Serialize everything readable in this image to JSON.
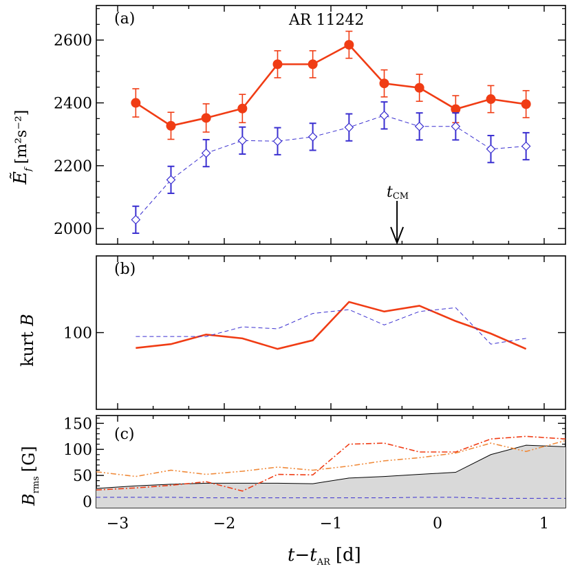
{
  "colors": {
    "red": "#f03c14",
    "blue": "#3a2fd0",
    "orange": "#f08a3a",
    "gray_fill": "#d9d9d9",
    "black": "#000000"
  },
  "chart_data": [
    {
      "panel": "a",
      "type": "line",
      "panel_label": "(a)",
      "title": "AR 11242",
      "ylabel_main": "Ẽ",
      "ylabel_sub": "f",
      "ylabel_units": "[m²s⁻²]",
      "annotation": "t",
      "annotation_sub": "CM",
      "annotation_x": -0.38,
      "ylim": [
        1950,
        2710
      ],
      "yticks": [
        2000,
        2200,
        2400,
        2600
      ],
      "x": [
        -2.83,
        -2.5,
        -2.17,
        -1.83,
        -1.5,
        -1.17,
        -0.83,
        -0.5,
        -0.17,
        0.17,
        0.5,
        0.83
      ],
      "series": [
        {
          "style": "solid-red-filled-circles",
          "values": [
            2400,
            2327,
            2352,
            2382,
            2523,
            2523,
            2585,
            2462,
            2448,
            2380,
            2412,
            2396
          ],
          "errors": [
            45,
            43,
            45,
            45,
            43,
            43,
            43,
            43,
            43,
            43,
            43,
            43
          ]
        },
        {
          "style": "dashed-blue-open-diamonds",
          "values": [
            2028,
            2155,
            2240,
            2280,
            2278,
            2292,
            2322,
            2360,
            2325,
            2325,
            2253,
            2262
          ],
          "errors": [
            43,
            43,
            43,
            43,
            43,
            43,
            43,
            43,
            43,
            43,
            43,
            43
          ]
        }
      ]
    },
    {
      "panel": "b",
      "type": "line",
      "panel_label": "(b)",
      "ylabel_main": "kurt",
      "ylabel_italic": "B",
      "ylim": [
        60,
        140
      ],
      "yticks": [
        100
      ],
      "x": [
        -2.83,
        -2.5,
        -2.17,
        -1.83,
        -1.5,
        -1.17,
        -0.83,
        -0.5,
        -0.17,
        0.17,
        0.5,
        0.83
      ],
      "series": [
        {
          "style": "solid-red",
          "values": [
            92,
            94,
            99,
            97,
            91.5,
            96,
            116,
            111,
            114,
            106,
            99.5,
            91.5
          ]
        },
        {
          "style": "dashed-blue",
          "values": [
            98,
            98,
            98,
            103,
            102,
            110,
            112,
            104,
            111,
            113,
            94,
            97
          ]
        }
      ]
    },
    {
      "panel": "c",
      "type": "area",
      "panel_label": "(c)",
      "ylabel_main": "B",
      "ylabel_sub": "rms",
      "ylabel_units": "[G]",
      "xlabel_main": "t",
      "xlabel_minus": "−",
      "xlabel_t2": "t",
      "xlabel_sub": "AR",
      "xlabel_units": "[d]",
      "xlim": [
        -3.2,
        1.2
      ],
      "ylim": [
        -12,
        165
      ],
      "yticks": [
        0,
        50,
        100,
        150
      ],
      "xticks": [
        -3,
        -2,
        -1,
        0,
        1
      ],
      "xtick_labels": [
        "−3",
        "−2",
        "−1",
        "0",
        "1"
      ],
      "series": [
        {
          "style": "solid-black-gray-fill",
          "x": [
            -3.2,
            -2.83,
            -2.5,
            -2.17,
            -1.83,
            -1.5,
            -1.17,
            -0.83,
            -0.5,
            -0.17,
            0.17,
            0.5,
            0.83,
            1.2
          ],
          "values": [
            25,
            30,
            33,
            35,
            35,
            35,
            34,
            45,
            48,
            52,
            56,
            90,
            108,
            105
          ]
        },
        {
          "style": "dashed-blue",
          "x": [
            -3.2,
            -2.83,
            -2.5,
            -2.17,
            -1.83,
            -1.5,
            -1.17,
            -0.83,
            -0.5,
            -0.17,
            0.17,
            0.5,
            0.83,
            1.2
          ],
          "values": [
            8,
            8,
            8,
            7,
            7,
            7,
            7,
            7,
            7,
            8,
            8,
            6,
            6,
            6
          ]
        },
        {
          "style": "dash-dot-red",
          "x": [
            -3.2,
            -2.83,
            -2.5,
            -2.17,
            -1.83,
            -1.5,
            -1.17,
            -0.83,
            -0.5,
            -0.17,
            0.17,
            0.5,
            0.83,
            1.2
          ],
          "values": [
            22,
            26,
            31,
            38,
            20,
            52,
            51,
            110,
            112,
            95,
            95,
            120,
            125,
            120
          ]
        },
        {
          "style": "dash-dot-dot-orange",
          "x": [
            -3.2,
            -2.83,
            -2.5,
            -2.17,
            -1.83,
            -1.5,
            -1.17,
            -0.83,
            -0.5,
            -0.17,
            0.17,
            0.5,
            0.83,
            1.2
          ],
          "values": [
            57,
            48,
            60,
            52,
            58,
            66,
            60,
            68,
            78,
            84,
            93,
            112,
            96,
            117
          ]
        }
      ]
    }
  ]
}
